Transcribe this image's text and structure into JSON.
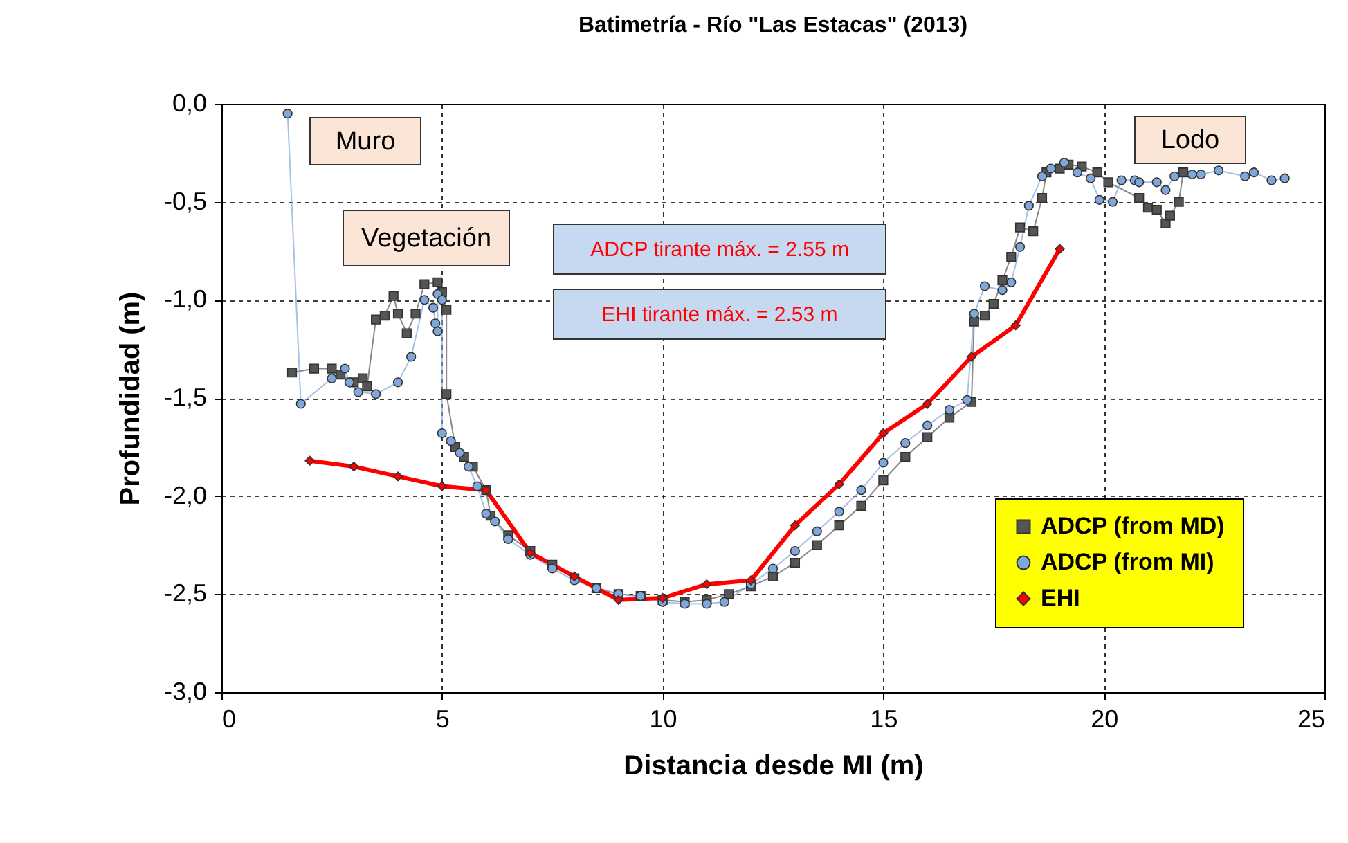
{
  "chart_data": {
    "type": "line",
    "title": "Batimetría  -  Río \"Las Estacas\" (2013)",
    "xlabel": "Distancia desde MI (m)",
    "ylabel": "Profundidad (m)",
    "xlim": [
      0,
      25
    ],
    "xticks": [
      0,
      5,
      10,
      15,
      20,
      25
    ],
    "ylim": [
      -3,
      0
    ],
    "yticks": [
      {
        "value": -3,
        "label": "-3,0"
      },
      {
        "value": -2.5,
        "label": "-2,5"
      },
      {
        "value": -2,
        "label": "-2,0"
      },
      {
        "value": -1.5,
        "label": "-1,5"
      },
      {
        "value": -1,
        "label": "-1,0"
      },
      {
        "value": -0.5,
        "label": "-0,5"
      },
      {
        "value": 0,
        "label": "0,0"
      }
    ],
    "grid": true,
    "legend": "bottom right",
    "line_style": "solid",
    "annotations": [
      "Muro",
      "Vegetación",
      "Lodo",
      "ADCP tirante máx. = 2.55 m",
      "EHI tirante máx. = 2.53 m"
    ],
    "series": [
      {
        "name": "ADCP (from MD)",
        "color": "#555555",
        "marker": "square",
        "x": [
          1.6,
          2.1,
          2.5,
          2.7,
          3.0,
          3.2,
          3.3,
          3.5,
          3.7,
          3.9,
          4.0,
          4.2,
          4.4,
          4.6,
          4.9,
          5.0,
          5.1,
          5.1,
          5.3,
          5.5,
          5.7,
          6.0,
          6.1,
          6.5,
          7.0,
          7.5,
          8.0,
          8.5,
          9.0,
          9.5,
          10.0,
          10.5,
          11.0,
          11.5,
          12.0,
          12.5,
          13.0,
          13.5,
          14.0,
          14.5,
          15.0,
          15.5,
          16.0,
          16.5,
          17.0,
          17.06,
          17.3,
          17.5,
          17.7,
          17.9,
          18.1,
          18.4,
          18.6,
          18.7,
          19.0,
          19.2,
          19.5,
          19.85,
          20.1,
          20.8,
          21.0,
          21.2,
          21.4,
          21.5,
          21.7,
          21.8
        ],
        "values": [
          -1.37,
          -1.35,
          -1.35,
          -1.38,
          -1.42,
          -1.4,
          -1.44,
          -1.1,
          -1.08,
          -0.98,
          -1.07,
          -1.17,
          -1.07,
          -0.92,
          -0.91,
          -0.96,
          -1.05,
          -1.48,
          -1.75,
          -1.8,
          -1.85,
          -1.97,
          -2.1,
          -2.2,
          -2.28,
          -2.35,
          -2.42,
          -2.47,
          -2.5,
          -2.51,
          -2.53,
          -2.54,
          -2.53,
          -2.5,
          -2.46,
          -2.41,
          -2.34,
          -2.25,
          -2.15,
          -2.05,
          -1.92,
          -1.8,
          -1.7,
          -1.6,
          -1.52,
          -1.11,
          -1.08,
          -1.02,
          -0.9,
          -0.78,
          -0.63,
          -0.65,
          -0.48,
          -0.35,
          -0.33,
          -0.31,
          -0.32,
          -0.35,
          -0.4,
          -0.48,
          -0.53,
          -0.54,
          -0.61,
          -0.57,
          -0.5,
          -0.35
        ]
      },
      {
        "name": "ADCP (from MI)",
        "color": "#7fa7d9",
        "marker": "circle",
        "x": [
          1.5,
          1.8,
          2.5,
          2.8,
          2.9,
          3.1,
          3.5,
          4.0,
          4.3,
          4.6,
          4.8,
          4.85,
          4.9,
          4.9,
          5.0,
          5.0,
          5.2,
          5.4,
          5.6,
          5.8,
          6.0,
          6.2,
          6.5,
          7.0,
          7.5,
          8.0,
          8.5,
          9.0,
          9.5,
          10.0,
          10.5,
          11.0,
          11.4,
          12.0,
          12.5,
          13.0,
          13.5,
          14.0,
          14.5,
          15.0,
          15.5,
          16.0,
          16.5,
          16.9,
          17.06,
          17.3,
          17.7,
          17.9,
          18.1,
          18.3,
          18.6,
          18.8,
          19.1,
          19.4,
          19.7,
          19.9,
          20.2,
          20.4,
          20.7,
          20.8,
          21.2,
          21.4,
          21.6,
          22.0,
          22.2,
          22.6,
          23.2,
          23.4,
          23.8,
          24.1
        ],
        "values": [
          -0.05,
          -1.53,
          -1.4,
          -1.35,
          -1.42,
          -1.47,
          -1.48,
          -1.42,
          -1.29,
          -1.0,
          -1.04,
          -1.12,
          -1.16,
          -0.97,
          -1.0,
          -1.68,
          -1.72,
          -1.78,
          -1.85,
          -1.95,
          -2.09,
          -2.13,
          -2.22,
          -2.3,
          -2.37,
          -2.43,
          -2.47,
          -2.5,
          -2.51,
          -2.54,
          -2.55,
          -2.55,
          -2.54,
          -2.45,
          -2.37,
          -2.28,
          -2.18,
          -2.08,
          -1.97,
          -1.83,
          -1.73,
          -1.64,
          -1.56,
          -1.51,
          -1.07,
          -0.93,
          -0.95,
          -0.91,
          -0.73,
          -0.52,
          -0.37,
          -0.33,
          -0.3,
          -0.35,
          -0.38,
          -0.49,
          -0.5,
          -0.39,
          -0.39,
          -0.4,
          -0.4,
          -0.44,
          -0.37,
          -0.36,
          -0.36,
          -0.34,
          -0.37,
          -0.35,
          -0.39,
          -0.38
        ]
      },
      {
        "name": "EHI",
        "color": "#ff0000",
        "marker": "diamond",
        "x": [
          2,
          3,
          4,
          5,
          6,
          7,
          8,
          9,
          10,
          11,
          12,
          13,
          14,
          15,
          16,
          17,
          18,
          19
        ],
        "values": [
          -1.82,
          -1.85,
          -1.9,
          -1.95,
          -1.97,
          -2.29,
          -2.41,
          -2.53,
          -2.52,
          -2.45,
          -2.43,
          -2.15,
          -1.94,
          -1.68,
          -1.53,
          -1.29,
          -1.13,
          -0.74
        ]
      }
    ]
  }
}
